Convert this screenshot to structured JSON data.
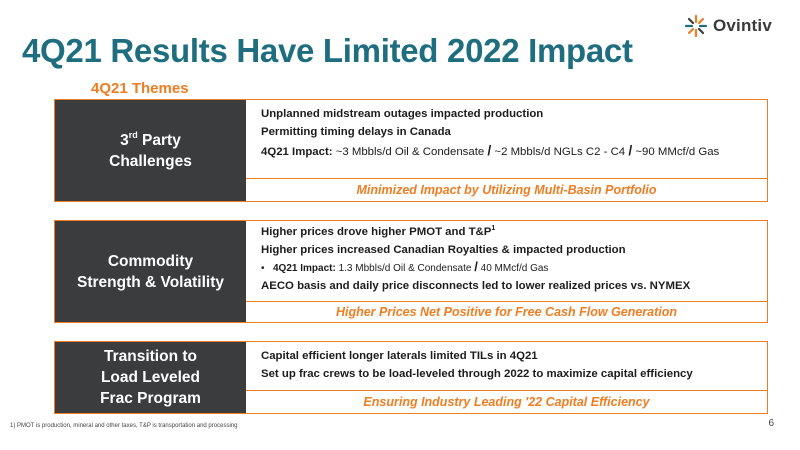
{
  "brand": {
    "name": "Ovintiv",
    "accent": "#ef7d22",
    "title_color": "#1f6e7f",
    "label_bg": "#3b3c3d"
  },
  "slide": {
    "title": "4Q21 Results Have Limited 2022 Impact",
    "subtitle": "4Q21 Themes",
    "footnote": "1) PMOT is production, mineral and other taxes, T&P is transportation and processing",
    "page_number": "6"
  },
  "panels": [
    {
      "label_pre": "3",
      "label_sup": "rd",
      "label_post": " Party",
      "label_line2": "Challenges",
      "line1": "Unplanned midstream outages impacted production",
      "line2": "Permitting timing delays in Canada",
      "impact_label": "4Q21 Impact:",
      "impact_a": " ~3 Mbbls/d Oil & Condensate ",
      "impact_b": " ~2 Mbbls/d NGLs C2 - C4 ",
      "impact_c": " ~90 MMcf/d Gas",
      "banner": "Minimized Impact by Utilizing Multi-Basin Portfolio"
    },
    {
      "label_line1": "Commodity",
      "label_line2": "Strength & Volatility",
      "line1": "Higher prices drove higher PMOT and T&P",
      "line1_sup": "1",
      "line2": "Higher prices increased Canadian Royalties & impacted production",
      "bullet_marker": "•",
      "bullet_label": "4Q21 Impact:",
      "bullet_a": " 1.3 Mbbls/d Oil & Condensate ",
      "bullet_b": " 40 MMcf/d Gas",
      "line3": "AECO basis and daily price disconnects led to lower realized prices vs. NYMEX",
      "banner": "Higher Prices Net Positive for Free Cash Flow Generation"
    },
    {
      "label_line1": "Transition to",
      "label_line2": "Load Leveled",
      "label_line3": "Frac Program",
      "line1": "Capital efficient longer laterals limited TILs in 4Q21",
      "line2": "Set up frac crews to be load-leveled through 2022 to maximize capital efficiency",
      "banner": "Ensuring Industry Leading '22 Capital Efficiency"
    }
  ],
  "separator": "/"
}
